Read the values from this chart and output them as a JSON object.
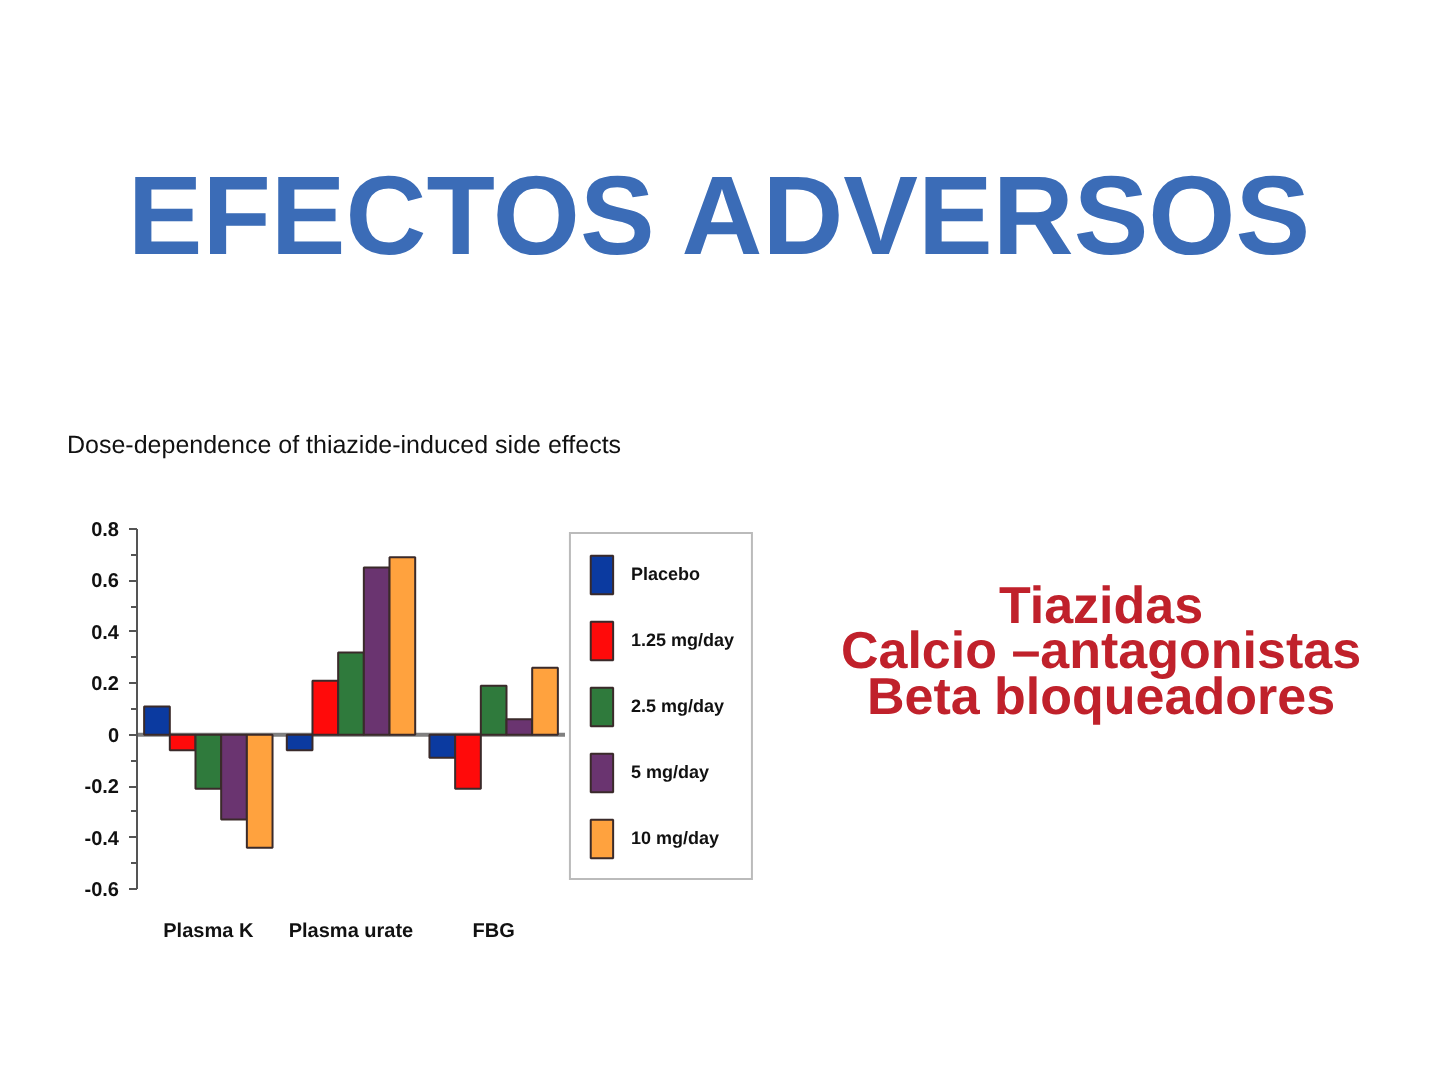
{
  "chart_data": {
    "type": "bar",
    "title": "EFECTOS ADVERSOS",
    "subtitle": "Dose-dependence of thiazide-induced side effects",
    "annotations": [
      "Tiazidas",
      "Calcio –antagonistas",
      "Beta bloqueadores"
    ],
    "categories": [
      "Plasma K",
      "Plasma urate",
      "FBG"
    ],
    "series": [
      {
        "name": "Placebo",
        "color": "#0b3aa0",
        "values": [
          0.11,
          -0.06,
          -0.09
        ]
      },
      {
        "name": "1.25 mg/day",
        "color": "#ff0a0a",
        "values": [
          -0.06,
          0.21,
          -0.21
        ]
      },
      {
        "name": "2.5 mg/day",
        "color": "#2f7a3c",
        "values": [
          -0.21,
          0.32,
          0.19
        ]
      },
      {
        "name": "5 mg/day",
        "color": "#6a3470",
        "values": [
          -0.33,
          0.65,
          0.06
        ]
      },
      {
        "name": "10 mg/day",
        "color": "#ffa23e",
        "values": [
          -0.44,
          0.69,
          0.26
        ]
      }
    ],
    "ylim": [
      -0.6,
      0.8
    ],
    "yticks": [
      -0.6,
      {
        "value": -0.5,
        "label": null
      },
      -0.4,
      {
        "value": -0.3,
        "label": null
      },
      -0.2,
      {
        "value": -0.1,
        "label": null
      },
      0,
      {
        "value": 0.1,
        "label": null
      },
      0.2,
      {
        "value": 0.3,
        "label": null
      },
      0.4,
      {
        "value": 0.5,
        "label": null
      },
      0.6,
      {
        "value": 0.7,
        "label": null
      },
      0.8
    ],
    "ref_lines": [
      {
        "axis": "y",
        "value": 0,
        "color": "#808080"
      }
    ],
    "legend": "top right"
  }
}
